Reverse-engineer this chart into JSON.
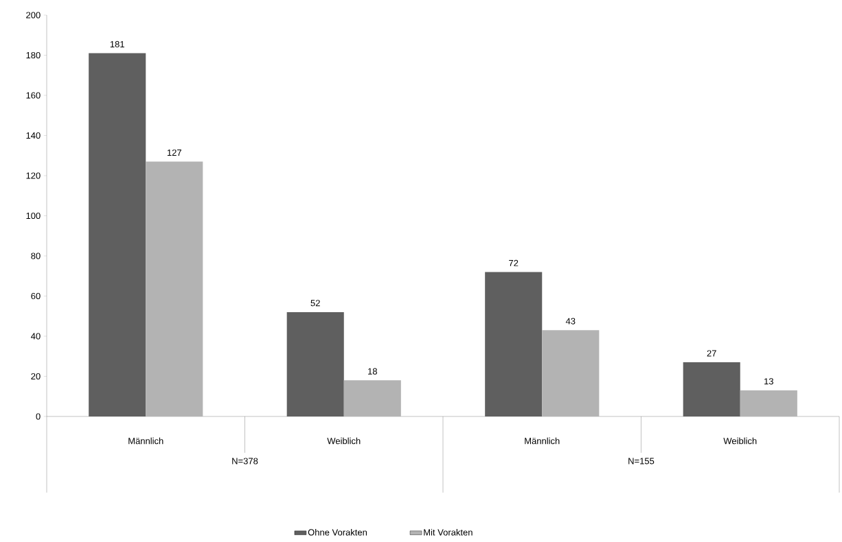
{
  "chart_data": {
    "type": "bar",
    "categories": [
      "Männlich",
      "Weiblich",
      "Männlich",
      "Weiblich"
    ],
    "series": [
      {
        "name": "Ohne Vorakten",
        "color": "#5f5f5f",
        "values": [
          181,
          52,
          72,
          27
        ]
      },
      {
        "name": "Mit Vorakten",
        "color": "#b3b3b3",
        "values": [
          127,
          18,
          43,
          13
        ]
      }
    ],
    "ylim": [
      0,
      200
    ],
    "yticks": [
      0,
      20,
      40,
      60,
      80,
      100,
      120,
      140,
      160,
      180,
      200
    ],
    "data_labels": true,
    "grid": false,
    "legend": "bottom",
    "annotations": [
      "N=378",
      "N=155"
    ]
  }
}
